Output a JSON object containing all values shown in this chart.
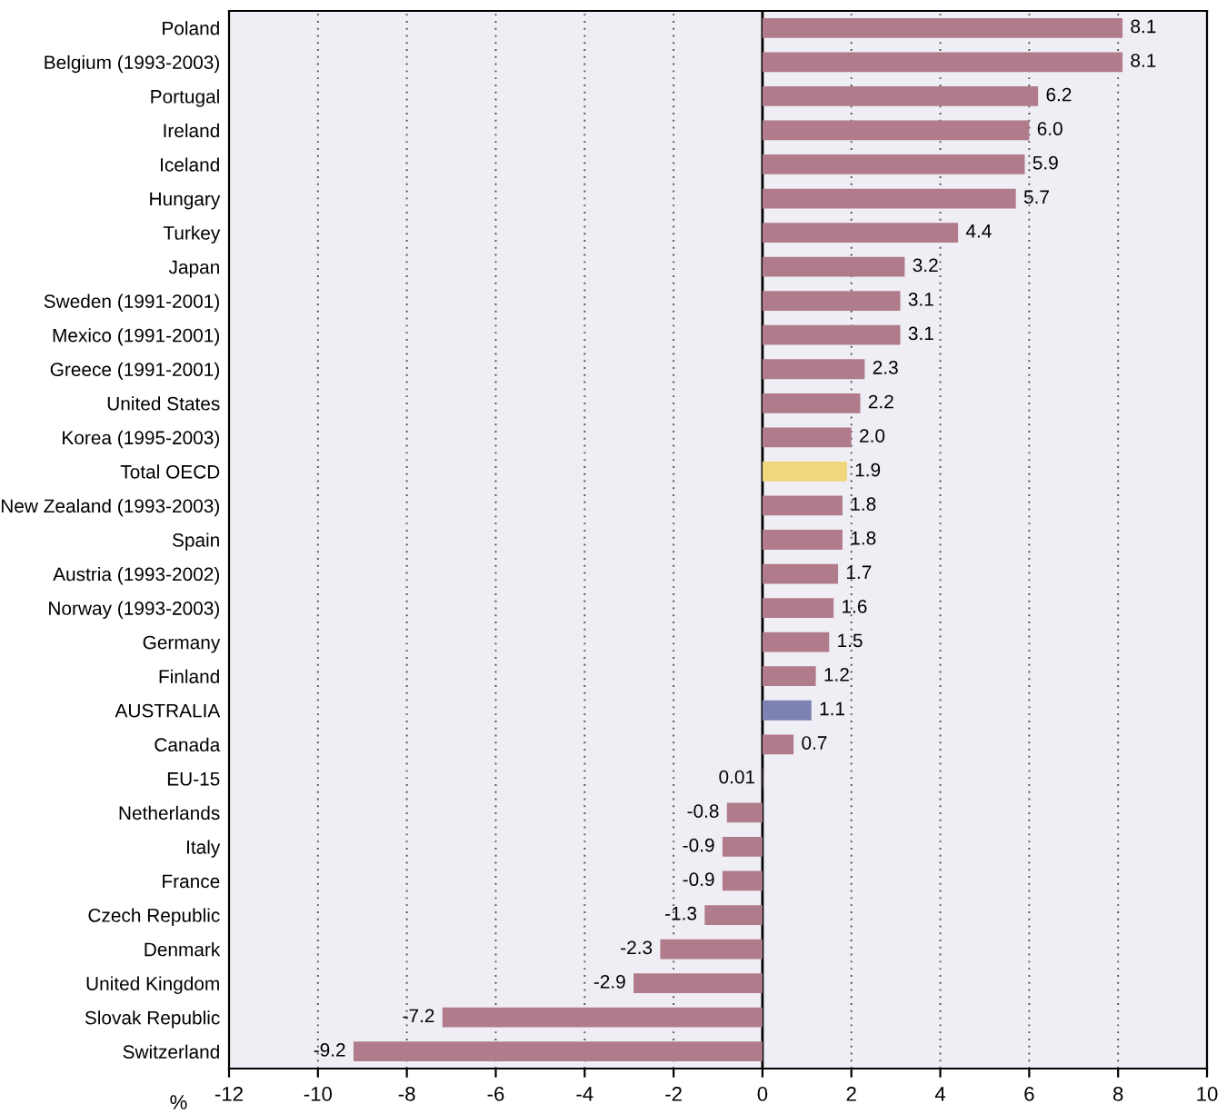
{
  "chart_data": {
    "type": "bar",
    "orientation": "horizontal",
    "xlabel": "%",
    "categories": [
      "Poland",
      "Belgium (1993-2003)",
      "Portugal",
      "Ireland",
      "Iceland",
      "Hungary",
      "Turkey",
      "Japan",
      "Sweden (1991-2001)",
      "Mexico (1991-2001)",
      "Greece (1991-2001)",
      "United States",
      "Korea (1995-2003)",
      "Total OECD",
      "New Zealand (1993-2003)",
      "Spain",
      "Austria (1993-2002)",
      "Norway (1993-2003)",
      "Germany",
      "Finland",
      "AUSTRALIA",
      "Canada",
      "EU-15",
      "Netherlands",
      "Italy",
      "France",
      "Czech Republic",
      "Denmark",
      "United Kingdom",
      "Slovak Republic",
      "Switzerland"
    ],
    "values": [
      8.1,
      8.1,
      6.2,
      6.0,
      5.9,
      5.7,
      4.4,
      3.2,
      3.1,
      3.1,
      2.3,
      2.2,
      2.0,
      1.9,
      1.8,
      1.8,
      1.7,
      1.6,
      1.5,
      1.2,
      1.1,
      0.7,
      0.01,
      -0.8,
      -0.9,
      -0.9,
      -1.3,
      -2.3,
      -2.9,
      -7.2,
      -9.2
    ],
    "value_labels": [
      "8.1",
      "8.1",
      "6.2",
      "6.0",
      "5.9",
      "5.7",
      "4.4",
      "3.2",
      "3.1",
      "3.1",
      "2.3",
      "2.2",
      "2.0",
      "1.9",
      "1.8",
      "1.8",
      "1.7",
      "1.6",
      "1.5",
      "1.2",
      "1.1",
      "0.7",
      "0.01",
      "-0.8",
      "-0.9",
      "-0.9",
      "-1.3",
      "-2.3",
      "-2.9",
      "-7.2",
      "-9.2"
    ],
    "colors": [
      "#b07b8b",
      "#b07b8b",
      "#b07b8b",
      "#b07b8b",
      "#b07b8b",
      "#b07b8b",
      "#b07b8b",
      "#b07b8b",
      "#b07b8b",
      "#b07b8b",
      "#b07b8b",
      "#b07b8b",
      "#b07b8b",
      "#f0d77e",
      "#b07b8b",
      "#b07b8b",
      "#b07b8b",
      "#b07b8b",
      "#b07b8b",
      "#b07b8b",
      "#7c82b2",
      "#b07b8b",
      "#b07b8b",
      "#b07b8b",
      "#b07b8b",
      "#b07b8b",
      "#b07b8b",
      "#b07b8b",
      "#b07b8b",
      "#b07b8b",
      "#b07b8b"
    ],
    "xlim": [
      -12,
      10
    ],
    "xticks": [
      -12,
      -10,
      -8,
      -6,
      -4,
      -2,
      0,
      2,
      4,
      6,
      8,
      10
    ],
    "grid": "x"
  }
}
